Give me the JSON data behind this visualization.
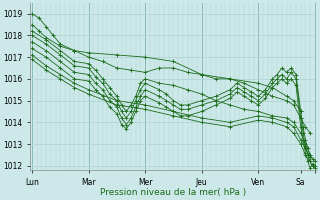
{
  "xlabel": "Pression niveau de la mer( hPa )",
  "bg_color": "#cce8e8",
  "grid_color_minor": "#b0d4d4",
  "grid_color_major": "#88bbbb",
  "line_color": "#1a6b1a",
  "ylim": [
    1011.8,
    1019.5
  ],
  "yticks": [
    1012,
    1013,
    1014,
    1015,
    1016,
    1017,
    1018,
    1019
  ],
  "xlim": [
    -1,
    121
  ],
  "day_positions": [
    0,
    24,
    48,
    72,
    96,
    114,
    120
  ],
  "day_labels": [
    "Lun",
    "Mar",
    "Mer",
    "Jeu",
    "Ven",
    "Sa",
    ""
  ],
  "series": [
    [
      [
        0,
        1019.0
      ],
      [
        3,
        1018.8
      ],
      [
        6,
        1018.4
      ],
      [
        9,
        1018.0
      ],
      [
        12,
        1017.6
      ],
      [
        18,
        1017.3
      ],
      [
        24,
        1017.2
      ],
      [
        36,
        1017.1
      ],
      [
        48,
        1017.0
      ],
      [
        60,
        1016.8
      ],
      [
        72,
        1016.2
      ],
      [
        84,
        1016.0
      ],
      [
        96,
        1015.8
      ],
      [
        102,
        1015.6
      ],
      [
        108,
        1015.2
      ],
      [
        111,
        1015.0
      ],
      [
        114,
        1014.5
      ]
    ],
    [
      [
        0,
        1018.5
      ],
      [
        3,
        1018.2
      ],
      [
        6,
        1017.9
      ],
      [
        12,
        1017.5
      ],
      [
        18,
        1017.3
      ],
      [
        24,
        1017.0
      ],
      [
        30,
        1016.8
      ],
      [
        36,
        1016.5
      ],
      [
        42,
        1016.4
      ],
      [
        48,
        1016.3
      ],
      [
        54,
        1016.5
      ],
      [
        60,
        1016.5
      ],
      [
        66,
        1016.3
      ],
      [
        72,
        1016.2
      ],
      [
        78,
        1016.0
      ],
      [
        84,
        1016.0
      ],
      [
        90,
        1015.8
      ],
      [
        96,
        1015.5
      ],
      [
        102,
        1015.2
      ],
      [
        108,
        1015.0
      ],
      [
        111,
        1014.8
      ],
      [
        114,
        1014.2
      ],
      [
        116,
        1013.8
      ],
      [
        118,
        1013.5
      ]
    ],
    [
      [
        0,
        1018.2
      ],
      [
        6,
        1017.8
      ],
      [
        12,
        1017.3
      ],
      [
        18,
        1016.8
      ],
      [
        24,
        1016.7
      ],
      [
        27,
        1016.4
      ],
      [
        30,
        1016.0
      ],
      [
        33,
        1015.6
      ],
      [
        36,
        1015.2
      ],
      [
        38,
        1014.8
      ],
      [
        40,
        1014.5
      ],
      [
        42,
        1014.8
      ],
      [
        44,
        1015.2
      ],
      [
        46,
        1015.8
      ],
      [
        48,
        1016.0
      ],
      [
        54,
        1015.8
      ],
      [
        60,
        1015.7
      ],
      [
        66,
        1015.5
      ],
      [
        72,
        1015.3
      ],
      [
        78,
        1015.0
      ],
      [
        84,
        1014.8
      ],
      [
        90,
        1014.6
      ],
      [
        96,
        1014.5
      ],
      [
        102,
        1014.3
      ],
      [
        108,
        1014.2
      ],
      [
        111,
        1014.0
      ],
      [
        114,
        1013.5
      ],
      [
        116,
        1013.0
      ],
      [
        118,
        1012.5
      ]
    ],
    [
      [
        0,
        1018.0
      ],
      [
        6,
        1017.6
      ],
      [
        12,
        1017.1
      ],
      [
        18,
        1016.6
      ],
      [
        24,
        1016.5
      ],
      [
        27,
        1016.1
      ],
      [
        30,
        1015.8
      ],
      [
        33,
        1015.3
      ],
      [
        36,
        1015.0
      ],
      [
        38,
        1014.5
      ],
      [
        40,
        1014.2
      ],
      [
        42,
        1014.5
      ],
      [
        44,
        1015.0
      ],
      [
        46,
        1015.5
      ],
      [
        48,
        1015.8
      ],
      [
        54,
        1015.5
      ],
      [
        57,
        1015.3
      ],
      [
        60,
        1015.0
      ],
      [
        63,
        1014.8
      ],
      [
        66,
        1014.8
      ],
      [
        72,
        1015.0
      ],
      [
        78,
        1015.2
      ],
      [
        84,
        1015.5
      ],
      [
        87,
        1015.8
      ],
      [
        90,
        1015.6
      ],
      [
        93,
        1015.4
      ],
      [
        96,
        1015.2
      ],
      [
        99,
        1015.5
      ],
      [
        102,
        1016.0
      ],
      [
        104,
        1016.2
      ],
      [
        106,
        1016.5
      ],
      [
        108,
        1016.3
      ],
      [
        110,
        1016.5
      ],
      [
        112,
        1016.2
      ],
      [
        114,
        1014.5
      ],
      [
        115,
        1013.8
      ],
      [
        116,
        1013.2
      ],
      [
        117,
        1012.8
      ],
      [
        118,
        1012.5
      ],
      [
        119,
        1012.3
      ],
      [
        120,
        1012.2
      ]
    ],
    [
      [
        0,
        1017.7
      ],
      [
        6,
        1017.3
      ],
      [
        12,
        1016.8
      ],
      [
        18,
        1016.3
      ],
      [
        24,
        1016.2
      ],
      [
        27,
        1015.8
      ],
      [
        30,
        1015.5
      ],
      [
        33,
        1015.0
      ],
      [
        36,
        1014.7
      ],
      [
        38,
        1014.2
      ],
      [
        40,
        1013.9
      ],
      [
        42,
        1014.2
      ],
      [
        44,
        1014.7
      ],
      [
        46,
        1015.2
      ],
      [
        48,
        1015.5
      ],
      [
        54,
        1015.2
      ],
      [
        57,
        1015.0
      ],
      [
        60,
        1014.8
      ],
      [
        63,
        1014.6
      ],
      [
        66,
        1014.6
      ],
      [
        72,
        1014.8
      ],
      [
        78,
        1015.0
      ],
      [
        84,
        1015.3
      ],
      [
        87,
        1015.6
      ],
      [
        90,
        1015.4
      ],
      [
        93,
        1015.2
      ],
      [
        96,
        1015.0
      ],
      [
        99,
        1015.3
      ],
      [
        102,
        1015.8
      ],
      [
        104,
        1016.0
      ],
      [
        106,
        1016.2
      ],
      [
        108,
        1016.0
      ],
      [
        110,
        1016.3
      ],
      [
        112,
        1016.0
      ],
      [
        114,
        1014.2
      ],
      [
        115,
        1013.5
      ],
      [
        116,
        1012.9
      ],
      [
        117,
        1012.5
      ],
      [
        118,
        1012.2
      ],
      [
        119,
        1012.0
      ],
      [
        120,
        1011.9
      ]
    ],
    [
      [
        0,
        1017.4
      ],
      [
        6,
        1017.0
      ],
      [
        12,
        1016.5
      ],
      [
        18,
        1016.0
      ],
      [
        24,
        1015.9
      ],
      [
        27,
        1015.5
      ],
      [
        30,
        1015.2
      ],
      [
        33,
        1014.7
      ],
      [
        36,
        1014.4
      ],
      [
        38,
        1013.9
      ],
      [
        40,
        1013.7
      ],
      [
        42,
        1014.0
      ],
      [
        44,
        1014.5
      ],
      [
        46,
        1015.0
      ],
      [
        48,
        1015.2
      ],
      [
        54,
        1014.9
      ],
      [
        57,
        1014.7
      ],
      [
        60,
        1014.5
      ],
      [
        63,
        1014.3
      ],
      [
        66,
        1014.3
      ],
      [
        72,
        1014.5
      ],
      [
        78,
        1014.8
      ],
      [
        84,
        1015.1
      ],
      [
        87,
        1015.4
      ],
      [
        90,
        1015.2
      ],
      [
        93,
        1015.0
      ],
      [
        96,
        1014.8
      ],
      [
        99,
        1015.1
      ],
      [
        102,
        1015.6
      ],
      [
        104,
        1015.8
      ],
      [
        106,
        1016.0
      ],
      [
        108,
        1015.8
      ],
      [
        110,
        1016.0
      ],
      [
        112,
        1015.7
      ],
      [
        114,
        1013.8
      ],
      [
        115,
        1013.2
      ],
      [
        116,
        1012.6
      ],
      [
        117,
        1012.2
      ],
      [
        118,
        1011.9
      ],
      [
        119,
        1012.1
      ],
      [
        120,
        1012.0
      ]
    ],
    [
      [
        0,
        1017.1
      ],
      [
        6,
        1016.6
      ],
      [
        12,
        1016.2
      ],
      [
        18,
        1015.8
      ],
      [
        24,
        1015.5
      ],
      [
        36,
        1015.0
      ],
      [
        48,
        1014.8
      ],
      [
        60,
        1014.5
      ],
      [
        72,
        1014.2
      ],
      [
        84,
        1014.0
      ],
      [
        96,
        1014.3
      ],
      [
        102,
        1014.2
      ],
      [
        108,
        1014.0
      ],
      [
        111,
        1013.8
      ],
      [
        114,
        1013.2
      ],
      [
        116,
        1012.8
      ],
      [
        118,
        1012.4
      ]
    ],
    [
      [
        0,
        1016.9
      ],
      [
        6,
        1016.4
      ],
      [
        12,
        1016.0
      ],
      [
        18,
        1015.6
      ],
      [
        24,
        1015.3
      ],
      [
        36,
        1014.8
      ],
      [
        48,
        1014.6
      ],
      [
        60,
        1014.3
      ],
      [
        72,
        1014.0
      ],
      [
        84,
        1013.8
      ],
      [
        96,
        1014.1
      ],
      [
        102,
        1014.0
      ],
      [
        108,
        1013.8
      ],
      [
        111,
        1013.5
      ],
      [
        114,
        1013.0
      ],
      [
        116,
        1012.5
      ],
      [
        118,
        1012.2
      ]
    ]
  ]
}
